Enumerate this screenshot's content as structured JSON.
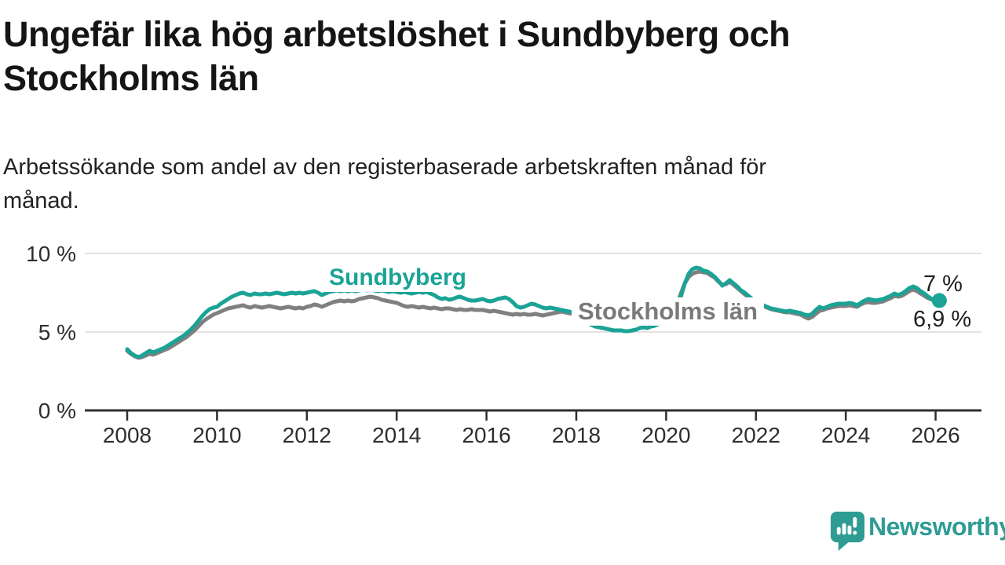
{
  "header": {
    "title_line1": "Ungefär lika hög arbetslöshet i Sundbyberg och",
    "title_line2": "Stockholms län",
    "subtitle_line1": "Arbetssökande som andel av den registerbaserade arbetskraften månad för",
    "subtitle_line2": "månad."
  },
  "footer": {
    "brand_name": "Newsworthy",
    "brand_color": "#2f9c94",
    "logo_icon": "speech-bubble-bar-chart-exclamation"
  },
  "colors": {
    "sundbyberg_teal": "#1aa396",
    "stockholm_gray": "#808080",
    "gridline": "#e2e2e2",
    "axis": "#2f2f2f",
    "text": "#1f1f1f"
  },
  "chart_data": {
    "type": "line",
    "unit": "%",
    "interval": "monthly",
    "grid": "horizontal-only",
    "ylim": [
      0,
      10.5
    ],
    "x_range_years": [
      2008.0,
      2026.083
    ],
    "y_ticks": [
      {
        "value": 0,
        "label": "0 %"
      },
      {
        "value": 5,
        "label": "5 %"
      },
      {
        "value": 10,
        "label": "10 %"
      }
    ],
    "x_ticks": [
      {
        "year": 2008,
        "label": "2008"
      },
      {
        "year": 2010,
        "label": "2010"
      },
      {
        "year": 2012,
        "label": "2012"
      },
      {
        "year": 2014,
        "label": "2014"
      },
      {
        "year": 2016,
        "label": "2016"
      },
      {
        "year": 2018,
        "label": "2018"
      },
      {
        "year": 2020,
        "label": "2020"
      },
      {
        "year": 2022,
        "label": "2022"
      },
      {
        "year": 2024,
        "label": "2024"
      },
      {
        "year": 2026,
        "label": "2026"
      }
    ],
    "end_labels": [
      {
        "series": "Sundbyberg",
        "text": "7 %"
      },
      {
        "series": "Stockholms län",
        "text": "6,9 %"
      }
    ],
    "series": [
      {
        "name": "Sundbyberg",
        "color": "#1aa396",
        "start_year": 2008,
        "end_dot": true,
        "values": [
          3.9,
          3.65,
          3.5,
          3.4,
          3.5,
          3.65,
          3.8,
          3.7,
          3.8,
          3.9,
          4.0,
          4.15,
          4.3,
          4.45,
          4.6,
          4.75,
          4.95,
          5.15,
          5.4,
          5.7,
          6.0,
          6.25,
          6.45,
          6.55,
          6.6,
          6.8,
          6.95,
          7.1,
          7.25,
          7.35,
          7.45,
          7.5,
          7.4,
          7.35,
          7.45,
          7.4,
          7.4,
          7.45,
          7.4,
          7.45,
          7.5,
          7.45,
          7.4,
          7.45,
          7.5,
          7.45,
          7.5,
          7.45,
          7.5,
          7.55,
          7.6,
          7.5,
          7.35,
          7.45,
          7.55,
          7.6,
          7.65,
          7.6,
          7.65,
          7.6,
          7.65,
          7.6,
          7.65,
          7.7,
          7.65,
          7.7,
          7.65,
          7.6,
          7.65,
          7.6,
          7.55,
          7.6,
          7.55,
          7.5,
          7.55,
          7.5,
          7.45,
          7.5,
          7.55,
          7.5,
          7.55,
          7.45,
          7.35,
          7.2,
          7.1,
          7.15,
          7.05,
          7.1,
          7.2,
          7.25,
          7.15,
          7.05,
          7.0,
          7.0,
          7.05,
          7.1,
          7.0,
          6.95,
          7.0,
          7.1,
          7.15,
          7.2,
          7.1,
          6.9,
          6.65,
          6.55,
          6.6,
          6.7,
          6.8,
          6.75,
          6.65,
          6.55,
          6.5,
          6.55,
          6.5,
          6.45,
          6.4,
          6.35,
          6.3,
          6.25,
          6.15,
          6.0,
          5.8,
          5.6,
          5.45,
          5.35,
          5.3,
          5.25,
          5.2,
          5.15,
          5.1,
          5.1,
          5.1,
          5.05,
          5.05,
          5.1,
          5.15,
          5.25,
          5.3,
          5.25,
          5.35,
          5.4,
          5.5,
          5.55,
          5.6,
          5.7,
          5.9,
          6.5,
          7.3,
          8.1,
          8.7,
          9.0,
          9.1,
          9.05,
          8.9,
          8.85,
          8.7,
          8.5,
          8.25,
          7.95,
          8.1,
          8.3,
          8.1,
          7.9,
          7.65,
          7.5,
          7.3,
          7.1,
          6.95,
          6.8,
          6.7,
          6.6,
          6.5,
          6.45,
          6.4,
          6.35,
          6.3,
          6.35,
          6.3,
          6.25,
          6.2,
          6.1,
          6.05,
          6.15,
          6.4,
          6.6,
          6.5,
          6.6,
          6.7,
          6.75,
          6.8,
          6.8,
          6.8,
          6.85,
          6.8,
          6.7,
          6.85,
          7.0,
          7.1,
          7.05,
          7.0,
          7.05,
          7.1,
          7.2,
          7.3,
          7.45,
          7.35,
          7.45,
          7.6,
          7.8,
          7.9,
          7.8,
          7.6,
          7.45,
          7.25,
          7.1,
          7.05,
          7.0
        ]
      },
      {
        "name": "Stockholms län",
        "color": "#808080",
        "start_year": 2008,
        "end_dot": false,
        "values": [
          3.8,
          3.6,
          3.45,
          3.35,
          3.4,
          3.5,
          3.6,
          3.55,
          3.65,
          3.75,
          3.85,
          3.95,
          4.1,
          4.25,
          4.4,
          4.55,
          4.7,
          4.9,
          5.1,
          5.35,
          5.6,
          5.8,
          5.95,
          6.1,
          6.2,
          6.3,
          6.4,
          6.5,
          6.55,
          6.6,
          6.65,
          6.7,
          6.6,
          6.55,
          6.65,
          6.6,
          6.55,
          6.6,
          6.65,
          6.6,
          6.55,
          6.5,
          6.55,
          6.6,
          6.55,
          6.5,
          6.55,
          6.5,
          6.6,
          6.65,
          6.75,
          6.7,
          6.6,
          6.7,
          6.8,
          6.9,
          6.95,
          7.0,
          6.95,
          7.0,
          6.95,
          7.0,
          7.1,
          7.15,
          7.2,
          7.25,
          7.2,
          7.15,
          7.05,
          7.0,
          6.95,
          6.9,
          6.85,
          6.75,
          6.65,
          6.6,
          6.65,
          6.6,
          6.55,
          6.6,
          6.55,
          6.5,
          6.55,
          6.5,
          6.45,
          6.5,
          6.5,
          6.45,
          6.4,
          6.45,
          6.4,
          6.4,
          6.45,
          6.4,
          6.4,
          6.4,
          6.35,
          6.3,
          6.35,
          6.3,
          6.25,
          6.2,
          6.15,
          6.1,
          6.15,
          6.1,
          6.15,
          6.1,
          6.1,
          6.15,
          6.1,
          6.05,
          6.1,
          6.15,
          6.2,
          6.25,
          6.3,
          6.25,
          6.2,
          6.15,
          6.1,
          6.05,
          6.0,
          6.0,
          5.95,
          6.0,
          5.95,
          5.95,
          5.9,
          5.9,
          5.9,
          5.9,
          5.9,
          5.85,
          5.85,
          5.8,
          5.85,
          5.9,
          5.9,
          5.95,
          5.95,
          6.0,
          6.0,
          6.0,
          6.0,
          6.05,
          6.2,
          6.8,
          7.5,
          8.1,
          8.5,
          8.7,
          8.8,
          8.85,
          8.8,
          8.75,
          8.6,
          8.45,
          8.2,
          8.0,
          8.05,
          8.2,
          8.0,
          7.8,
          7.6,
          7.4,
          7.2,
          7.05,
          6.9,
          6.75,
          6.65,
          6.55,
          6.45,
          6.4,
          6.35,
          6.3,
          6.25,
          6.25,
          6.2,
          6.15,
          6.1,
          5.95,
          5.85,
          5.95,
          6.15,
          6.35,
          6.4,
          6.5,
          6.55,
          6.6,
          6.65,
          6.65,
          6.65,
          6.7,
          6.65,
          6.6,
          6.75,
          6.85,
          6.9,
          6.85,
          6.85,
          6.9,
          6.95,
          7.05,
          7.15,
          7.3,
          7.25,
          7.3,
          7.45,
          7.6,
          7.7,
          7.6,
          7.45,
          7.3,
          7.15,
          7.05,
          7.0,
          6.9
        ]
      }
    ]
  }
}
